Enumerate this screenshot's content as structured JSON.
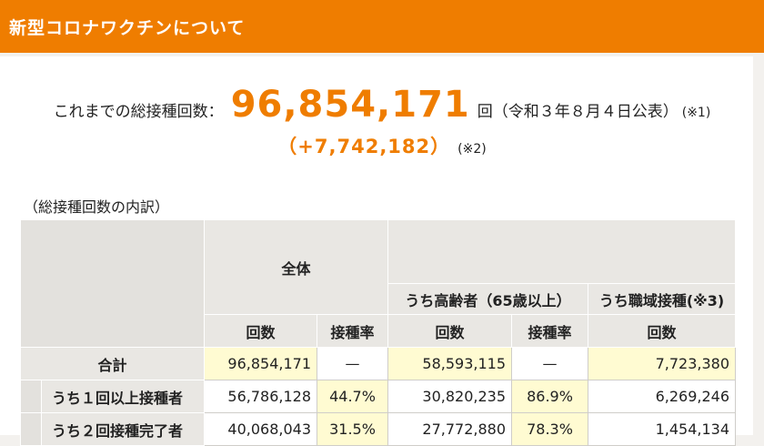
{
  "header": {
    "title": "新型コロナワクチンについて"
  },
  "summary": {
    "prefix": "これまでの総接種回数：",
    "total": "96,854,171",
    "suffix": "回（令和３年８月４日公表）",
    "note1": "(※1)",
    "diff": "（+7,742,182）",
    "note2": "(※2)"
  },
  "breakdown": {
    "caption": "（総接種回数の内訳）",
    "group_all": "全体",
    "group_elderly": "うち高齢者（65歳以上）",
    "group_work": "うち職域接種(※3)",
    "col_count": "回数",
    "col_rate": "接種率",
    "rows": [
      {
        "label": "合計",
        "all_count": "96,854,171",
        "all_rate": "—",
        "eld_count": "58,593,115",
        "eld_rate": "—",
        "work_count": "7,723,380"
      },
      {
        "label": "うち１回以上接種者",
        "all_count": "56,786,128",
        "all_rate": "44.7%",
        "eld_count": "30,820,235",
        "eld_rate": "86.9%",
        "work_count": "6,269,246"
      },
      {
        "label": "うち２回接種完了者",
        "all_count": "40,068,043",
        "all_rate": "31.5%",
        "eld_count": "27,772,880",
        "eld_rate": "78.3%",
        "work_count": "1,454,134"
      }
    ]
  }
}
